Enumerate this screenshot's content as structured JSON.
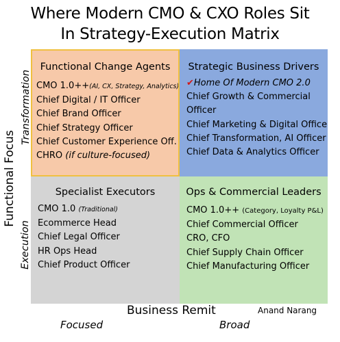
{
  "title_line1": "Where Modern CMO & CXO Roles Sit",
  "title_line2": "In Strategy-Execution Matrix",
  "y_axis_label": "Functional Focus",
  "x_axis_label": "Business Remit",
  "row_labels": {
    "top": "Transformation",
    "bottom": "Execution"
  },
  "column_labels": {
    "left": "Focused",
    "right": "Broad"
  },
  "author": "Anand Narang",
  "colors": {
    "top_left": "#f7c9a9",
    "top_right": "#8aa9de",
    "bottom_left": "#d4d4d4",
    "bottom_right": "#c1e3b6",
    "checkmark": "#d11a1a"
  },
  "quadrants": {
    "top_left": {
      "heading": "Functional Change Agents",
      "items": [
        {
          "main": "CMO 1.0++",
          "note": "(AI, CX, Strategy, Analytics)"
        },
        {
          "main": "Chief Digital / IT Officer"
        },
        {
          "main": "Chief Brand Officer"
        },
        {
          "main": "Chief Strategy Officer"
        },
        {
          "main": "Chief Customer Experience Off."
        },
        {
          "main": "CHRO",
          "note": "(if culture-focused)"
        }
      ]
    },
    "top_right": {
      "heading": "Strategic Business Drivers",
      "highlight_icon": "checkmark-icon",
      "items": [
        {
          "main": "Home Of Modern CMO 2.0"
        },
        {
          "main": "Chief Growth & Commercial Officer"
        },
        {
          "main": "Chief Marketing & Digital Officer"
        },
        {
          "main": "Chief Transformation, AI Officer"
        },
        {
          "main": "Chief Data & Analytics Officer"
        }
      ]
    },
    "bottom_left": {
      "heading": "Specialist Executors",
      "items": [
        {
          "main": "CMO 1.0",
          "note": "(Traditional)"
        },
        {
          "main": "Ecommerce Head"
        },
        {
          "main": "Chief Legal Officer"
        },
        {
          "main": "HR Ops Head"
        },
        {
          "main": "Chief Product Officer"
        }
      ]
    },
    "bottom_right": {
      "heading": "Ops & Commercial Leaders",
      "items": [
        {
          "main": "CMO 1.0++",
          "note": "(Category, Loyalty P&L)"
        },
        {
          "main": "Chief Commercial Officer"
        },
        {
          "main": "CRO, CFO"
        },
        {
          "main": "Chief Supply Chain Officer"
        },
        {
          "main": "Chief Manufacturing Officer"
        }
      ]
    }
  }
}
